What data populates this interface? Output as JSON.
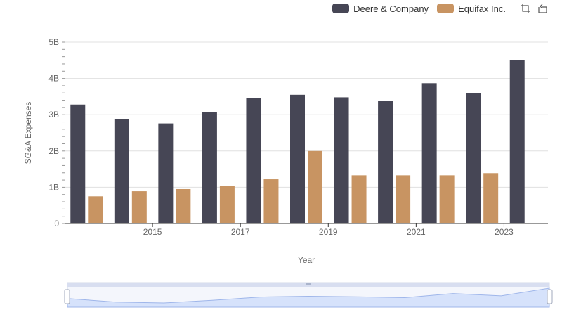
{
  "chart_data": {
    "type": "bar",
    "title": "",
    "xlabel": "Year",
    "ylabel": "SG&A Expenses",
    "categories": [
      "2014",
      "2015",
      "2016",
      "2017",
      "2018",
      "2019",
      "2020",
      "2021",
      "2022",
      "2023",
      "2024"
    ],
    "x_tick_labels": [
      "2015",
      "2017",
      "2019",
      "2021",
      "2023"
    ],
    "y_tick_labels": [
      "0",
      "1B",
      "2B",
      "3B",
      "4B",
      "5B"
    ],
    "ylim": [
      0,
      5000000000
    ],
    "grid": true,
    "legend_position": "top-right",
    "series": [
      {
        "name": "Deere & Company",
        "color": "#464655",
        "values": [
          3280000000,
          2870000000,
          2760000000,
          3070000000,
          3460000000,
          3550000000,
          3480000000,
          3380000000,
          3870000000,
          3600000000,
          4500000000
        ]
      },
      {
        "name": "Equifax Inc.",
        "color": "#C89462",
        "values": [
          750000000,
          890000000,
          950000000,
          1040000000,
          1220000000,
          2000000000,
          1330000000,
          1330000000,
          1330000000,
          1390000000,
          null
        ]
      }
    ]
  },
  "toolbar": {
    "zoom_icon": "zoom-box-icon",
    "reset_icon": "restore-icon"
  }
}
